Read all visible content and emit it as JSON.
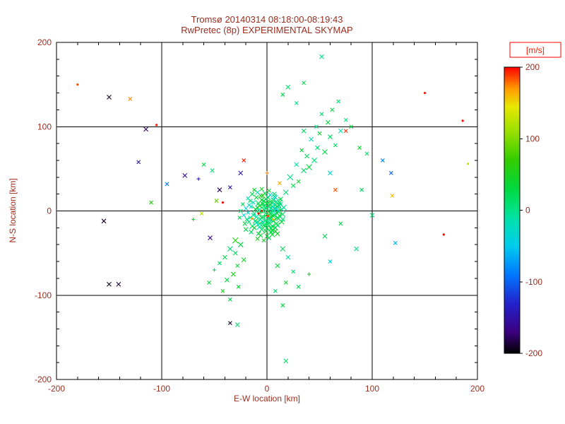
{
  "chart_data": {
    "type": "scatter",
    "title": "Tromsø 20140314 08:18:00-08:19:43",
    "subtitle": "RwPretec (8p) EXPERIMENTAL SKYMAP",
    "xlabel": "E-W location [km]",
    "ylabel": "N-S location [km]",
    "xlim": [
      -200,
      200
    ],
    "ylim": [
      -200,
      200
    ],
    "x_ticks": [
      -200,
      -100,
      0,
      100,
      200
    ],
    "y_ticks": [
      -200,
      -100,
      0,
      100,
      200
    ],
    "grid_lines": [
      -100,
      0,
      100
    ],
    "minor_tick_step": 20,
    "grid": "on",
    "colorbar": {
      "label": "[m/s]",
      "min": -200,
      "max": 200,
      "ticks": [
        200,
        100,
        0,
        -100,
        -200
      ]
    },
    "colormap": [
      [
        -200,
        "#000000"
      ],
      [
        -170,
        "#3c0080"
      ],
      [
        -130,
        "#2222cc"
      ],
      [
        -90,
        "#0077ff"
      ],
      [
        -50,
        "#00ccee"
      ],
      [
        -15,
        "#00e0b0"
      ],
      [
        0,
        "#00e287"
      ],
      [
        30,
        "#00d840"
      ],
      [
        70,
        "#33cc00"
      ],
      [
        110,
        "#99e000"
      ],
      [
        145,
        "#e8e800"
      ],
      [
        170,
        "#ff9900"
      ],
      [
        200,
        "#ff0000"
      ]
    ],
    "points_format": [
      "x_km",
      "y_km",
      "velocity_ms",
      "size",
      "marker"
    ],
    "points": [
      [
        -3,
        2,
        10,
        5,
        "x"
      ],
      [
        0,
        -4,
        25,
        7,
        "x"
      ],
      [
        -8,
        1,
        -15,
        4,
        "x"
      ],
      [
        4,
        -7,
        30,
        6,
        "x"
      ],
      [
        -12,
        -3,
        5,
        3,
        "x"
      ],
      [
        2,
        6,
        40,
        8,
        "x"
      ],
      [
        -6,
        -10,
        0,
        5,
        "x"
      ],
      [
        7,
        3,
        15,
        4,
        "x"
      ],
      [
        -15,
        5,
        -25,
        3,
        "x"
      ],
      [
        1,
        -13,
        20,
        6,
        "x"
      ],
      [
        -4,
        8,
        35,
        4,
        "x"
      ],
      [
        9,
        -2,
        10,
        7,
        "x"
      ],
      [
        -10,
        -7,
        -10,
        5,
        "x"
      ],
      [
        3,
        11,
        45,
        3,
        "x"
      ],
      [
        -7,
        -15,
        25,
        6,
        "x"
      ],
      [
        12,
        0,
        5,
        4,
        "x"
      ],
      [
        -2,
        -6,
        15,
        9,
        "+"
      ],
      [
        5,
        -18,
        30,
        5,
        "x"
      ],
      [
        -18,
        -2,
        -30,
        3,
        "x"
      ],
      [
        0,
        9,
        50,
        4,
        "x"
      ],
      [
        -5,
        -22,
        20,
        6,
        "x"
      ],
      [
        8,
        7,
        0,
        5,
        "x"
      ],
      [
        -13,
        10,
        -20,
        3,
        "x"
      ],
      [
        2,
        -9,
        35,
        7,
        "x"
      ],
      [
        -9,
        4,
        10,
        4,
        "x"
      ],
      [
        6,
        -12,
        25,
        5,
        "x"
      ],
      [
        -16,
        -8,
        -5,
        3,
        "x"
      ],
      [
        10,
        5,
        40,
        6,
        "x"
      ],
      [
        -1,
        14,
        15,
        4,
        "x"
      ],
      [
        4,
        -25,
        30,
        5,
        "x"
      ],
      [
        -20,
        3,
        -35,
        3,
        "x"
      ],
      [
        7,
        -5,
        20,
        8,
        "x"
      ],
      [
        -6,
        18,
        45,
        4,
        "x"
      ],
      [
        11,
        -9,
        5,
        5,
        "x"
      ],
      [
        -3,
        -17,
        25,
        6,
        "x"
      ],
      [
        14,
        2,
        -15,
        4,
        "x"
      ],
      [
        -11,
        -12,
        35,
        5,
        "x"
      ],
      [
        1,
        4,
        10,
        10,
        "+"
      ],
      [
        -8,
        -27,
        30,
        4,
        "x"
      ],
      [
        5,
        9,
        0,
        6,
        "x"
      ],
      [
        -17,
        7,
        -25,
        3,
        "x"
      ],
      [
        9,
        -15,
        40,
        5,
        "x"
      ],
      [
        -2,
        21,
        20,
        4,
        "x"
      ],
      [
        3,
        -3,
        55,
        8,
        "x"
      ],
      [
        -14,
        -18,
        15,
        5,
        "x"
      ],
      [
        13,
        8,
        -10,
        4,
        "x"
      ],
      [
        -5,
        -8,
        25,
        7,
        "x"
      ],
      [
        0,
        -30,
        35,
        4,
        "x"
      ],
      [
        -22,
        -5,
        -40,
        3,
        "x"
      ],
      [
        6,
        13,
        10,
        5,
        "x"
      ],
      [
        -10,
        16,
        30,
        4,
        "x"
      ],
      [
        15,
        -4,
        20,
        5,
        "x"
      ],
      [
        -4,
        -13,
        -20,
        6,
        "x"
      ],
      [
        2,
        24,
        45,
        3,
        "x"
      ],
      [
        -19,
        -10,
        5,
        4,
        "x"
      ],
      [
        8,
        -20,
        25,
        5,
        "x"
      ],
      [
        -7,
        6,
        60,
        6,
        "x"
      ],
      [
        12,
        10,
        15,
        4,
        "x"
      ],
      [
        -1,
        -24,
        35,
        5,
        "x"
      ],
      [
        4,
        1,
        -5,
        9,
        "+"
      ],
      [
        -25,
        0,
        10,
        3,
        "x"
      ],
      [
        10,
        -8,
        30,
        6,
        "x"
      ],
      [
        -3,
        12,
        20,
        4,
        "x"
      ],
      [
        7,
        17,
        -30,
        5,
        "x"
      ],
      [
        -12,
        -20,
        40,
        4,
        "x"
      ],
      [
        16,
        4,
        5,
        5,
        "x"
      ],
      [
        -6,
        -2,
        25,
        8,
        "+"
      ],
      [
        1,
        -16,
        15,
        6,
        "x"
      ],
      [
        -9,
        22,
        -15,
        4,
        "x"
      ],
      [
        5,
        -28,
        35,
        5,
        "x"
      ],
      [
        -16,
        12,
        20,
        3,
        "x"
      ],
      [
        11,
        -1,
        45,
        5,
        "x"
      ],
      [
        -2,
        7,
        10,
        7,
        "x"
      ],
      [
        3,
        -10,
        -25,
        6,
        "x"
      ],
      [
        -21,
        -15,
        30,
        4,
        "x"
      ],
      [
        9,
        11,
        5,
        5,
        "x"
      ],
      [
        -5,
        26,
        50,
        3,
        "x"
      ],
      [
        0,
        -20,
        20,
        6,
        "x"
      ],
      [
        -13,
        -5,
        -10,
        4,
        "x"
      ],
      [
        14,
        -13,
        40,
        5,
        "x"
      ],
      [
        -8,
        9,
        15,
        6,
        "x"
      ],
      [
        6,
        -6,
        30,
        7,
        "x"
      ],
      [
        -18,
        15,
        -20,
        3,
        "x"
      ],
      [
        2,
        -32,
        25,
        4,
        "x"
      ],
      [
        -4,
        18,
        55,
        4,
        "x"
      ],
      [
        10,
        -17,
        10,
        5,
        "x"
      ],
      [
        -11,
        2,
        35,
        6,
        "x"
      ],
      [
        5,
        5,
        -35,
        7,
        "x"
      ],
      [
        -26,
        -8,
        20,
        3,
        "x"
      ],
      [
        8,
        -24,
        45,
        4,
        "x"
      ],
      [
        -1,
        -11,
        5,
        8,
        "x"
      ],
      [
        13,
        14,
        30,
        4,
        "x"
      ],
      [
        -7,
        -19,
        -15,
        5,
        "x"
      ],
      [
        3,
        8,
        40,
        6,
        "x"
      ],
      [
        -15,
        -25,
        15,
        4,
        "x"
      ],
      [
        12,
        -6,
        25,
        5,
        "x"
      ],
      [
        -3,
        -35,
        50,
        3,
        "x"
      ],
      [
        7,
        20,
        10,
        4,
        "x"
      ],
      [
        -10,
        -14,
        -25,
        5,
        "x"
      ],
      [
        4,
        -21,
        30,
        6,
        "x"
      ],
      [
        -23,
        8,
        20,
        3,
        "x"
      ],
      [
        9,
        2,
        -40,
        6,
        "x"
      ],
      [
        -6,
        -29,
        35,
        4,
        "x"
      ],
      [
        1,
        16,
        15,
        5,
        "x"
      ],
      [
        -12,
        25,
        45,
        3,
        "x"
      ],
      [
        15,
        -10,
        5,
        4,
        "x"
      ],
      [
        -2,
        -18,
        25,
        7,
        "x"
      ],
      [
        6,
        -1,
        -10,
        8,
        "x"
      ],
      [
        -20,
        -22,
        30,
        4,
        "x"
      ],
      [
        11,
        7,
        20,
        5,
        "x"
      ],
      [
        -5,
        13,
        40,
        5,
        "x"
      ],
      [
        2,
        -14,
        10,
        6,
        "x"
      ],
      [
        -9,
        -33,
        55,
        3,
        "x"
      ],
      [
        8,
        16,
        -20,
        4,
        "x"
      ],
      [
        -14,
        20,
        25,
        4,
        "x"
      ],
      [
        5,
        -23,
        35,
        5,
        "x"
      ],
      [
        -1,
        3,
        15,
        10,
        "x"
      ],
      [
        10,
        -27,
        45,
        4,
        "x"
      ],
      [
        -17,
        -13,
        5,
        3,
        "x"
      ],
      [
        3,
        19,
        -30,
        4,
        "x"
      ],
      [
        -8,
        -3,
        200,
        2,
        "."
      ],
      [
        1,
        -6,
        185,
        2,
        "."
      ],
      [
        -14,
        -9,
        170,
        2,
        "."
      ],
      [
        -5,
        0,
        195,
        2,
        "."
      ],
      [
        6,
        -10,
        160,
        2,
        "."
      ],
      [
        18,
        22,
        10,
        5,
        "x"
      ],
      [
        25,
        30,
        25,
        4,
        "x"
      ],
      [
        22,
        40,
        0,
        6,
        "x"
      ],
      [
        30,
        35,
        40,
        3,
        "x"
      ],
      [
        35,
        48,
        15,
        5,
        "x"
      ],
      [
        28,
        55,
        -10,
        4,
        "x"
      ],
      [
        40,
        52,
        30,
        6,
        "x"
      ],
      [
        38,
        65,
        20,
        4,
        "x"
      ],
      [
        45,
        60,
        5,
        5,
        "x"
      ],
      [
        33,
        72,
        35,
        3,
        "x"
      ],
      [
        48,
        75,
        10,
        4,
        "x"
      ],
      [
        55,
        70,
        25,
        5,
        "x"
      ],
      [
        42,
        85,
        -20,
        4,
        "x"
      ],
      [
        50,
        92,
        40,
        3,
        "x"
      ],
      [
        60,
        88,
        15,
        4,
        "x"
      ],
      [
        47,
        100,
        0,
        3,
        "x"
      ],
      [
        58,
        105,
        30,
        4,
        "x"
      ],
      [
        65,
        78,
        20,
        3,
        "x"
      ],
      [
        52,
        115,
        10,
        3,
        "x"
      ],
      [
        70,
        95,
        -15,
        4,
        "x"
      ],
      [
        62,
        120,
        25,
        3,
        "x"
      ],
      [
        75,
        108,
        5,
        3,
        "x"
      ],
      [
        68,
        130,
        15,
        3,
        "x"
      ],
      [
        80,
        100,
        35,
        3,
        "x"
      ],
      [
        35,
        95,
        20,
        4,
        "x"
      ],
      [
        20,
        147,
        10,
        4,
        "x"
      ],
      [
        35,
        152,
        25,
        3,
        "x"
      ],
      [
        52,
        183,
        5,
        4,
        "x"
      ],
      [
        28,
        128,
        0,
        3,
        "x"
      ],
      [
        15,
        138,
        30,
        3,
        "x"
      ],
      [
        -25,
        -40,
        30,
        5,
        "x"
      ],
      [
        -30,
        -50,
        20,
        4,
        "x"
      ],
      [
        -22,
        -58,
        45,
        4,
        "x"
      ],
      [
        -35,
        -45,
        10,
        5,
        "x"
      ],
      [
        -28,
        -65,
        35,
        3,
        "x"
      ],
      [
        -40,
        -55,
        25,
        4,
        "x"
      ],
      [
        -32,
        -75,
        50,
        4,
        "x"
      ],
      [
        -45,
        -62,
        15,
        3,
        "x"
      ],
      [
        -38,
        -82,
        30,
        4,
        "x"
      ],
      [
        -27,
        -90,
        40,
        3,
        "x"
      ],
      [
        -50,
        -70,
        20,
        3,
        "+"
      ],
      [
        -42,
        -95,
        55,
        3,
        "x"
      ],
      [
        -35,
        -105,
        25,
        3,
        "x"
      ],
      [
        -55,
        -85,
        35,
        3,
        "x"
      ],
      [
        -30,
        -35,
        60,
        6,
        "x"
      ],
      [
        15,
        -45,
        20,
        5,
        "x"
      ],
      [
        20,
        -55,
        -10,
        4,
        "x"
      ],
      [
        10,
        -65,
        30,
        4,
        "x"
      ],
      [
        25,
        -72,
        15,
        3,
        "x"
      ],
      [
        18,
        -85,
        40,
        3,
        "x"
      ],
      [
        30,
        -90,
        25,
        3,
        "x"
      ],
      [
        40,
        -75,
        50,
        3,
        "+"
      ],
      [
        8,
        -95,
        10,
        3,
        "x"
      ],
      [
        15,
        -112,
        30,
        3,
        "x"
      ],
      [
        18,
        -178,
        15,
        4,
        "x"
      ],
      [
        -28,
        -135,
        10,
        4,
        "x"
      ],
      [
        -35,
        -133,
        -190,
        3,
        "x"
      ],
      [
        100,
        -5,
        10,
        4,
        "x"
      ],
      [
        122,
        -38,
        -60,
        3,
        "x"
      ],
      [
        85,
        -45,
        0,
        4,
        "x"
      ],
      [
        60,
        -60,
        -40,
        3,
        "x"
      ],
      [
        55,
        -30,
        20,
        4,
        "x"
      ],
      [
        70,
        -15,
        30,
        3,
        "x"
      ],
      [
        90,
        25,
        15,
        3,
        "x"
      ],
      [
        88,
        75,
        40,
        3,
        "x"
      ],
      [
        95,
        68,
        10,
        3,
        "x"
      ],
      [
        60,
        45,
        -30,
        4,
        "x"
      ],
      [
        110,
        60,
        -80,
        3,
        "x"
      ],
      [
        -180,
        150,
        185,
        2,
        "."
      ],
      [
        -150,
        135,
        -190,
        4,
        "x"
      ],
      [
        -130,
        133,
        175,
        3,
        "x"
      ],
      [
        -115,
        97,
        -180,
        4,
        "x"
      ],
      [
        -105,
        102,
        195,
        2,
        "."
      ],
      [
        -122,
        58,
        -150,
        3,
        "x"
      ],
      [
        -155,
        -12,
        -190,
        4,
        "x"
      ],
      [
        -150,
        -87,
        -195,
        4,
        "x"
      ],
      [
        -141,
        -87,
        -185,
        4,
        "x"
      ],
      [
        -78,
        42,
        -165,
        4,
        "x"
      ],
      [
        -65,
        38,
        -130,
        3,
        "+"
      ],
      [
        -60,
        55,
        25,
        3,
        "x"
      ],
      [
        -52,
        48,
        15,
        3,
        "x"
      ],
      [
        -45,
        25,
        -180,
        4,
        "x"
      ],
      [
        -35,
        28,
        -155,
        3,
        "x"
      ],
      [
        -25,
        45,
        -140,
        4,
        "x"
      ],
      [
        -48,
        12,
        90,
        3,
        "x"
      ],
      [
        -42,
        10,
        200,
        2,
        "."
      ],
      [
        -110,
        10,
        60,
        3,
        "x"
      ],
      [
        -95,
        32,
        -90,
        3,
        "x"
      ],
      [
        -70,
        -10,
        45,
        3,
        "+"
      ],
      [
        -54,
        -32,
        -170,
        4,
        "x"
      ],
      [
        -62,
        -3,
        120,
        3,
        "x"
      ],
      [
        150,
        140,
        195,
        2,
        "."
      ],
      [
        186,
        107,
        200,
        2,
        "."
      ],
      [
        75,
        95,
        190,
        3,
        "x"
      ],
      [
        65,
        25,
        185,
        3,
        "x"
      ],
      [
        119,
        18,
        160,
        3,
        "x"
      ],
      [
        191,
        56,
        130,
        2,
        "."
      ],
      [
        168,
        -28,
        200,
        2,
        "."
      ],
      [
        118,
        45,
        -100,
        3,
        "x"
      ],
      [
        -22,
        60,
        195,
        3,
        "x"
      ],
      [
        0,
        45,
        175,
        3,
        "+"
      ],
      [
        12,
        33,
        165,
        3,
        "x"
      ]
    ]
  },
  "colors": {
    "text": "#9b2d1f",
    "axis": "#000000",
    "background": "#ffffff",
    "colorbar_frame": "#000000",
    "cbar_label_color": "#ff2000",
    "cbar_label_box": "#ff0000"
  }
}
